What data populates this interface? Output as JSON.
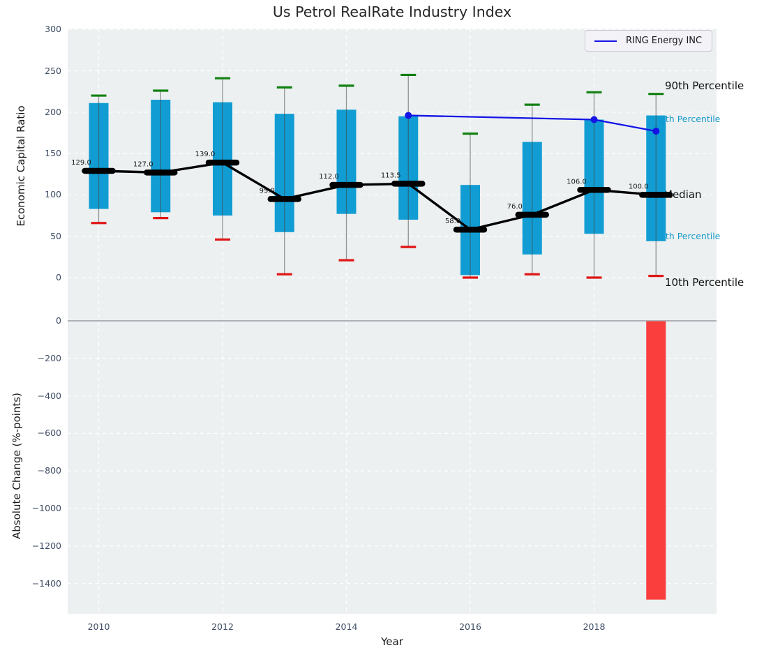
{
  "title": "Us Petrol RealRate Industry Index",
  "xlabel": "Year",
  "top_ylabel": "Economic Capital Ratio",
  "bottom_ylabel": "Absolute Change (%-points)",
  "legend": {
    "label": "RING Energy INC"
  },
  "right_labels": {
    "p90": "90th Percentile",
    "p75": "75th Percentile",
    "median": "Median",
    "p25": "25th Percentile",
    "p10": "10th Percentile"
  },
  "colors": {
    "box": "#119dd3",
    "whisker": "#444444",
    "cap_high": "#118011",
    "cap_low": "#e01515",
    "median_line": "#000000",
    "company_line": "#1414e6",
    "change_bar": "#fa3d3d",
    "panel_bg": "#ecf0f1",
    "grid": "#ffffff",
    "zero_line": "#aeb1b8",
    "tick_text": "#3d4c63",
    "cyan_label": "#1a9bcb"
  },
  "chart_data": [
    {
      "type": "box-whisker",
      "title": "Us Petrol RealRate Industry Index",
      "xlabel": "Year",
      "ylabel": "Economic Capital Ratio",
      "ylim": [
        -52,
        301
      ],
      "yticks": [
        300,
        250,
        200,
        150,
        100,
        50,
        0
      ],
      "xticks": [
        2010,
        2012,
        2014,
        2016,
        2018
      ],
      "grid": true,
      "legend_position": "upper right",
      "years": [
        2010,
        2011,
        2012,
        2013,
        2014,
        2015,
        2016,
        2017,
        2018,
        2019
      ],
      "p90": [
        220,
        226,
        241,
        230,
        232,
        245,
        174,
        209,
        224,
        222
      ],
      "p75": [
        211,
        215,
        212,
        198,
        203,
        195,
        112,
        164,
        191,
        196
      ],
      "median": [
        129,
        127,
        139,
        95,
        112,
        113.5,
        58,
        76,
        106,
        100
      ],
      "p25": [
        83,
        79,
        75,
        55,
        77,
        70,
        3,
        28,
        53,
        44
      ],
      "p10": [
        66,
        72,
        46,
        4,
        21,
        37,
        0,
        4,
        0,
        2
      ],
      "median_labels": [
        "129.0",
        "127.0",
        "139.0",
        "95.0",
        "112.0",
        "113.5",
        "58.0",
        "76.0",
        "106.0",
        "100.0"
      ],
      "series": [
        {
          "name": "RING Energy INC",
          "x": [
            2015,
            2018,
            2019
          ],
          "y": [
            196,
            191,
            177
          ],
          "color": "#1414e6"
        }
      ]
    },
    {
      "type": "bar",
      "xlabel": "Year",
      "ylabel": "Absolute Change (%-points)",
      "ylim": [
        -1561,
        0
      ],
      "yticks": [
        0,
        -200,
        -400,
        -600,
        -800,
        -1000,
        -1200,
        -1400
      ],
      "categories": [
        2019
      ],
      "values": [
        -1484
      ],
      "grid": true
    }
  ]
}
